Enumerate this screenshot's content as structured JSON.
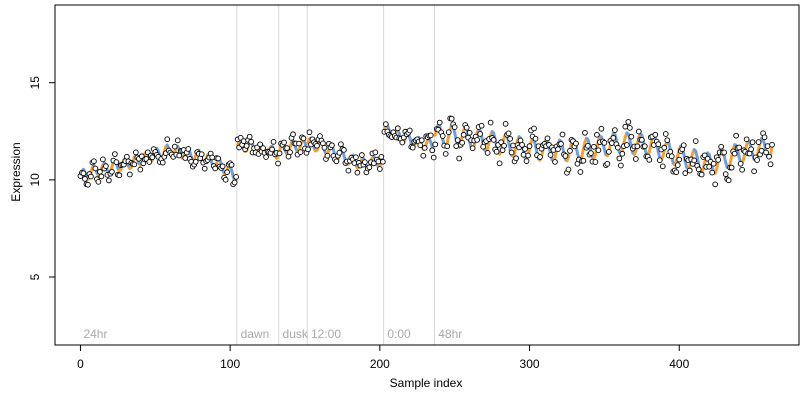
{
  "chart_data": {
    "type": "scatter",
    "title": "",
    "xlabel": "Sample index",
    "ylabel": "Expression",
    "xlim": [
      -17,
      480
    ],
    "ylim": [
      1.5,
      19.0
    ],
    "x_ticks": [
      0,
      100,
      200,
      300,
      400
    ],
    "y_ticks": [
      5,
      10,
      15
    ],
    "x_tick_labels": [
      "0",
      "100",
      "200",
      "300",
      "400"
    ],
    "y_tick_labels": [
      "5",
      "10",
      "15"
    ],
    "grid": false,
    "legend": "none",
    "colors": {
      "points_fill": "#ffffff",
      "points_stroke": "#000000",
      "fit_up": "#f5a030",
      "fit_down": "#6f9fdc",
      "separator": "#d9d9d9",
      "annotation": "#a8a8a8"
    },
    "segments": [
      {
        "label": "24hr",
        "start": 0,
        "end": 104,
        "levels": [
          10.2,
          10.5,
          10.7,
          10.9,
          11.2,
          11.5,
          11.4,
          11.2,
          10.8,
          10.2
        ]
      },
      {
        "label": "dawn",
        "start": 105,
        "end": 132,
        "levels": [
          11.8,
          11.7,
          11.5,
          11.4
        ]
      },
      {
        "label": "dusk",
        "start": 133,
        "end": 151,
        "levels": [
          11.5,
          11.7,
          11.8
        ]
      },
      {
        "label": "12:00",
        "start": 152,
        "end": 202,
        "levels": [
          11.9,
          11.6,
          11.1,
          10.8,
          11.0
        ]
      },
      {
        "label": "0:00",
        "start": 203,
        "end": 236,
        "levels": [
          12.6,
          12.2,
          11.9,
          11.8
        ]
      },
      {
        "label": "48hr",
        "start": 237,
        "end": 462,
        "levels": [
          12.3,
          12.2,
          11.9,
          11.6,
          11.5,
          11.6,
          11.9,
          11.8,
          11.2,
          10.8,
          11.4,
          11.7
        ]
      }
    ],
    "separators": [
      104.5,
      132.5,
      151.5,
      202.5,
      236.5
    ]
  }
}
